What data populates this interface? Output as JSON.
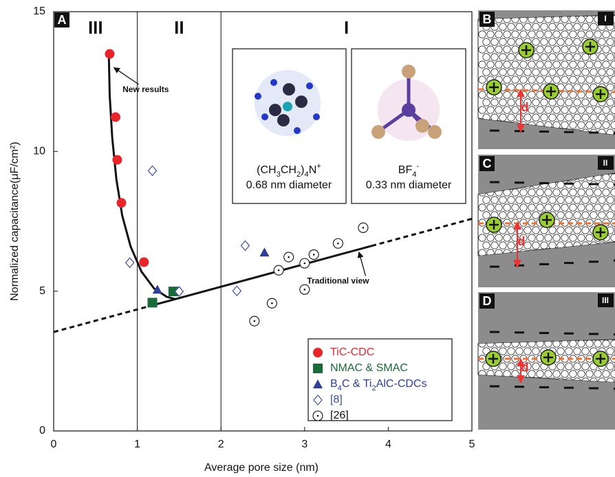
{
  "chart_data": {
    "type": "scatter",
    "panel_label": "A",
    "x_label": "Average pore size (nm)",
    "y_label": "Normalized  capacitance(μF/cm²)",
    "xlim": [
      0,
      5
    ],
    "xticks": [
      0,
      1,
      2,
      3,
      4,
      5
    ],
    "ylim": [
      0,
      15
    ],
    "yticks": [
      0,
      5,
      10,
      15
    ],
    "region_boundaries": [
      1,
      2
    ],
    "regions": [
      {
        "label": "III",
        "x": 0.5
      },
      {
        "label": "II",
        "x": 1.5
      },
      {
        "label": "I",
        "x": 3.5
      }
    ],
    "series": [
      {
        "name": "TiC-CDC",
        "color": "#e8262a",
        "marker": "circle",
        "x": [
          0.67,
          0.74,
          0.76,
          0.81,
          1.08
        ],
        "values": [
          13.49,
          11.23,
          9.7,
          8.16,
          6.04
        ]
      },
      {
        "name": "NMAC  & SMAC",
        "color": "#1a6b3a",
        "marker": "square",
        "x": [
          1.18,
          1.43
        ],
        "values": [
          4.59,
          4.99
        ]
      },
      {
        "name": "B4C & Ti2AlC-CDCs",
        "color": "#2e3e9a",
        "marker": "triangle",
        "x": [
          1.24,
          2.52
        ],
        "values": [
          5.06,
          6.39
        ]
      },
      {
        "name": "[8]",
        "color": "#3c4fa8",
        "marker": "diamond",
        "x": [
          1.18,
          0.91,
          1.5,
          2.29,
          2.19
        ],
        "values": [
          9.31,
          6.02,
          4.99,
          6.63,
          5.01
        ]
      },
      {
        "name": "[26]",
        "color": "#111111",
        "marker": "dotcircle",
        "x": [
          3.7,
          3.4,
          2.81,
          3.11,
          3.0,
          2.69,
          3.0,
          2.61,
          2.4
        ],
        "values": [
          7.27,
          6.71,
          6.22,
          6.31,
          6.0,
          5.75,
          5.06,
          4.57,
          3.93
        ]
      }
    ],
    "fits": [
      {
        "dash": false,
        "x": [
          0.66,
          0.67,
          0.7,
          0.75,
          0.82,
          0.92,
          1.05,
          1.2,
          1.35,
          1.45
        ],
        "values": [
          13.4,
          12.0,
          10.5,
          9.0,
          7.7,
          6.6,
          5.7,
          5.1,
          4.8,
          4.72
        ]
      },
      {
        "dash": true,
        "x": [
          0,
          1.2
        ],
        "values": [
          3.54,
          4.51
        ]
      },
      {
        "dash": false,
        "x": [
          1.2,
          3.8
        ],
        "values": [
          4.51,
          6.62
        ]
      },
      {
        "dash": true,
        "x": [
          3.8,
          5
        ],
        "values": [
          6.62,
          7.59
        ]
      }
    ],
    "annotations": [
      {
        "text": "New results",
        "x": 1.1,
        "y": 12.2,
        "arrow_to": [
          0.72,
          13.0
        ]
      },
      {
        "text": "Traditional view",
        "x": 3.4,
        "y": 5.35,
        "arrow_to": [
          3.65,
          6.4
        ]
      }
    ],
    "ions": [
      {
        "formula": "(CH3CH2)4N+",
        "size": "0.68 nm diameter"
      },
      {
        "formula": "BF4-",
        "size": "0.33 nm diameter"
      }
    ]
  },
  "schematic": {
    "distance_label": "d",
    "panels": [
      {
        "label": "B",
        "regime": "I"
      },
      {
        "label": "C",
        "regime": "II"
      },
      {
        "label": "D",
        "regime": "III"
      }
    ]
  }
}
